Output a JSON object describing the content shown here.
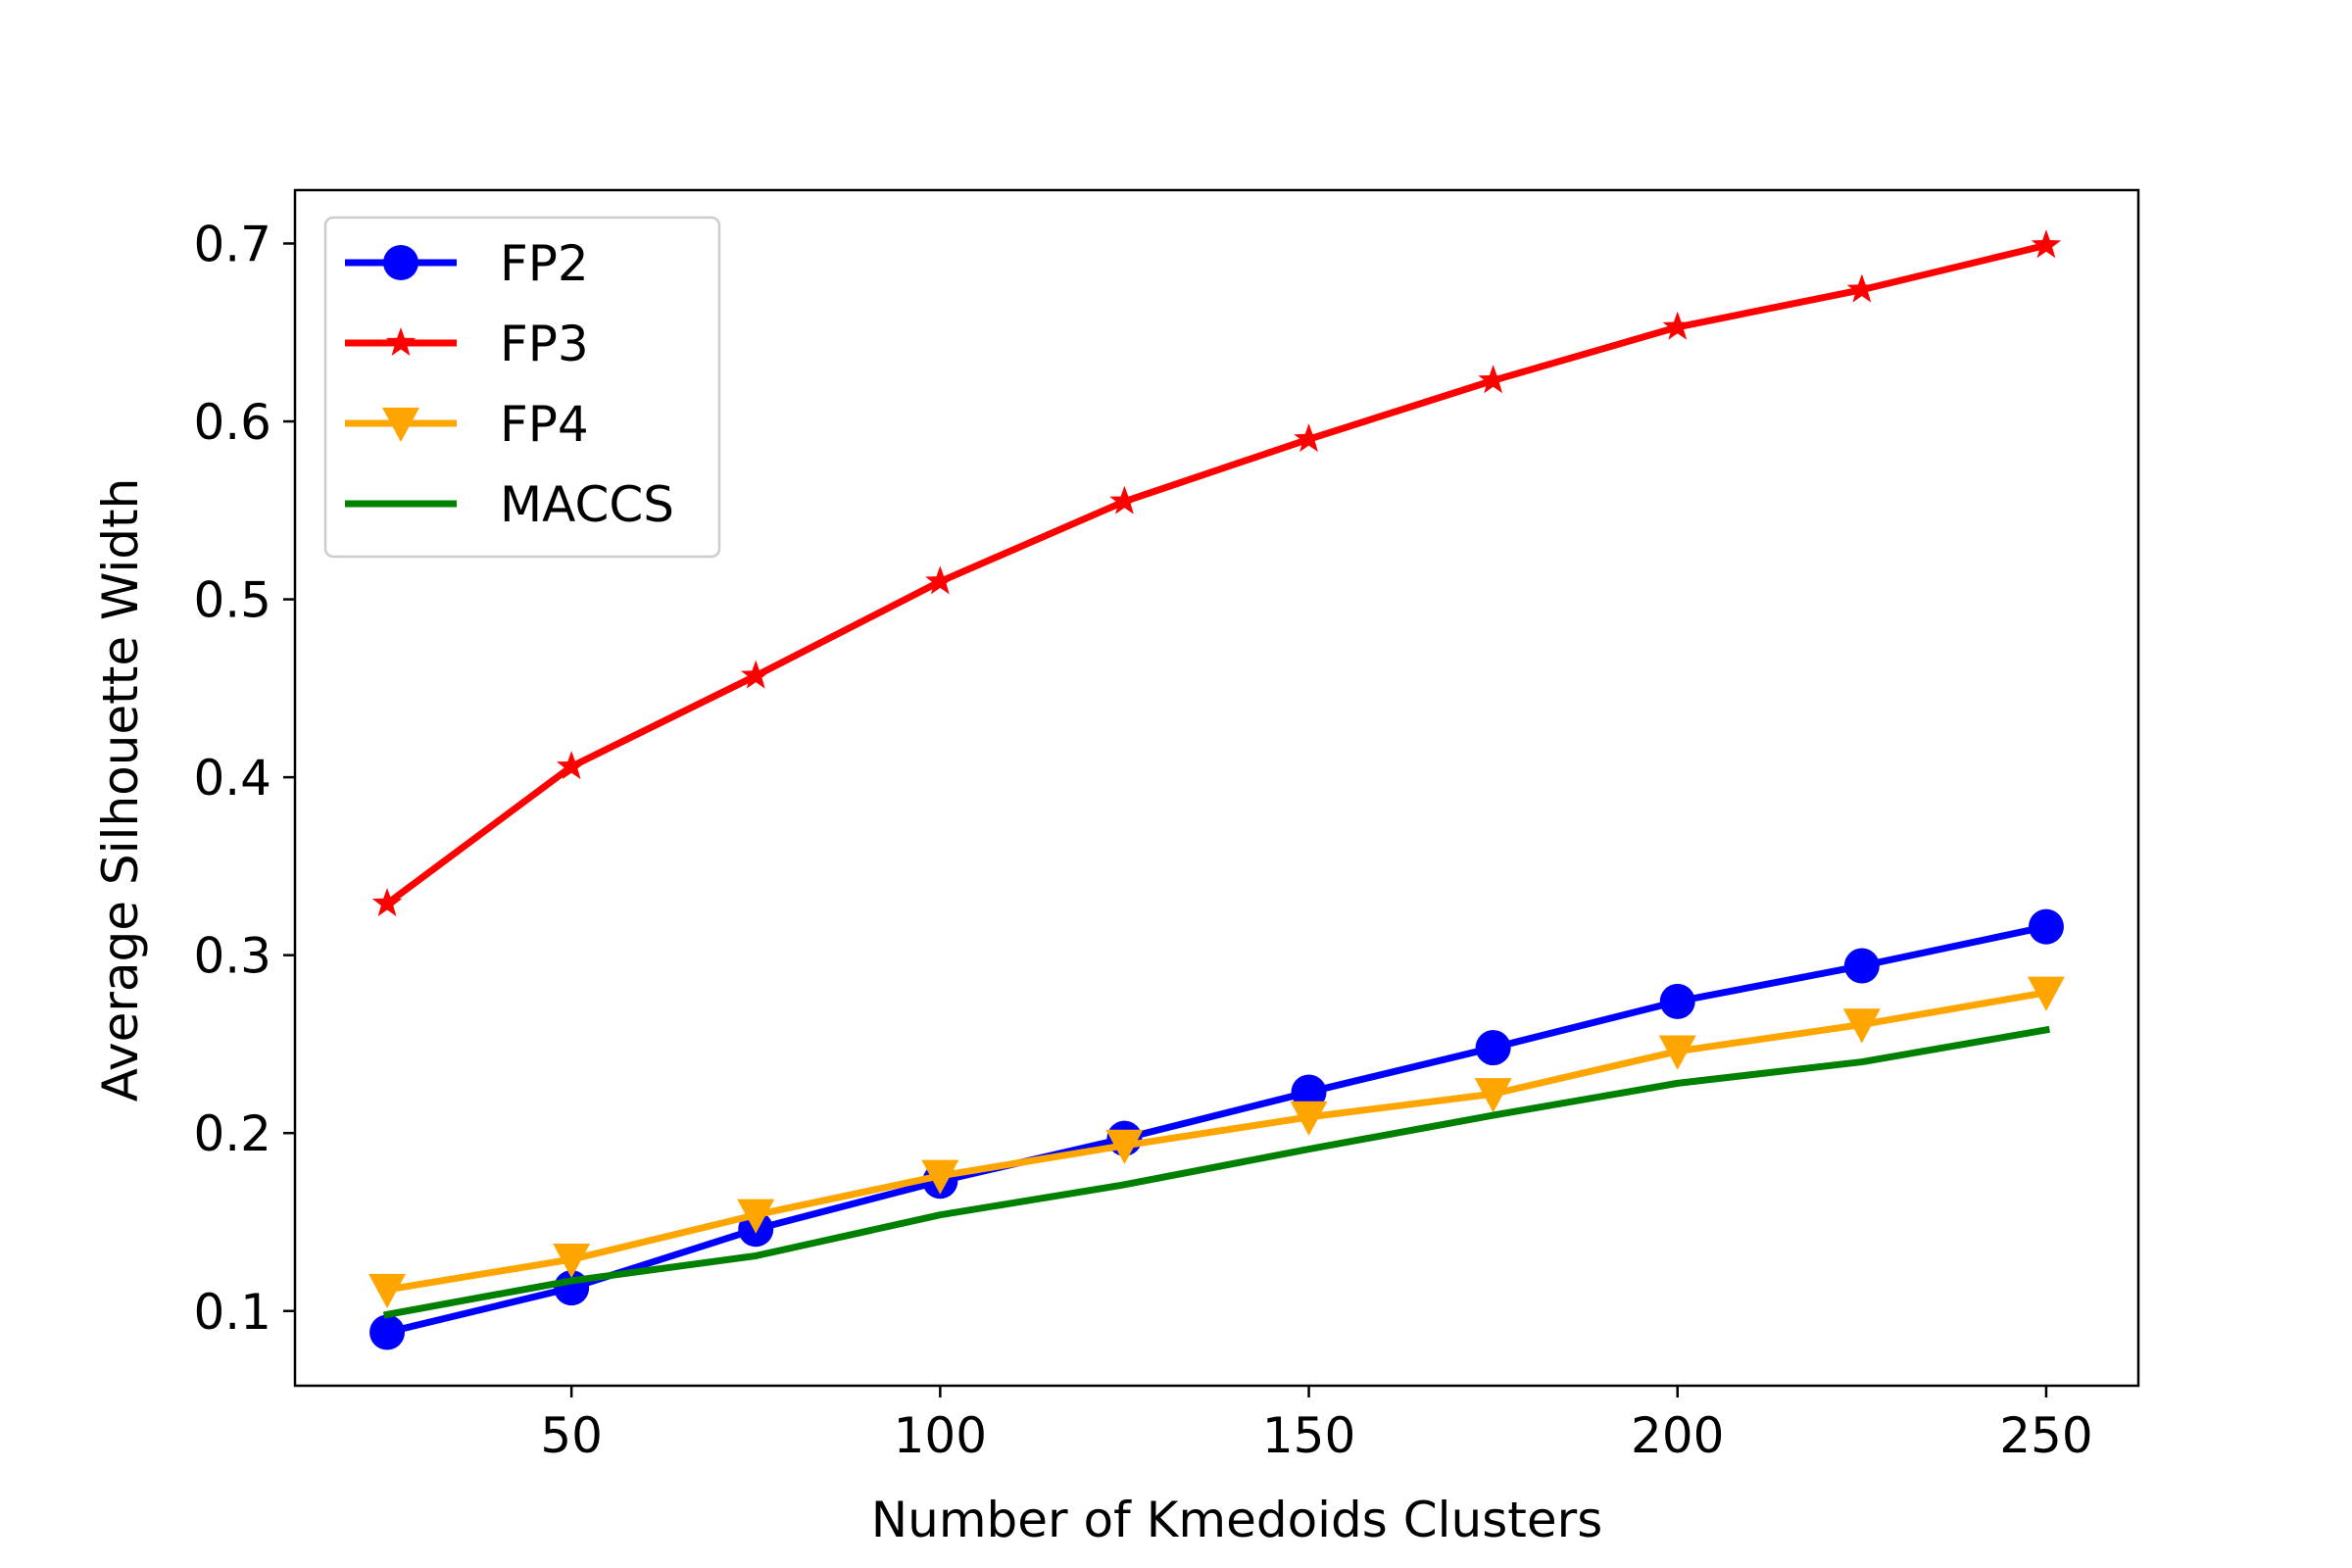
{
  "chart_data": {
    "type": "line",
    "title": "",
    "xlabel": "Number of Kmedoids Clusters",
    "ylabel": "Average Silhouette Width",
    "x": [
      25,
      50,
      75,
      100,
      125,
      150,
      175,
      200,
      225,
      250
    ],
    "xlim": [
      12.5,
      262.5
    ],
    "ylim": [
      0.058,
      0.73
    ],
    "xticks": [
      50,
      100,
      150,
      200,
      250
    ],
    "xtick_labels": [
      "50",
      "100",
      "150",
      "200",
      "250"
    ],
    "yticks": [
      0.1,
      0.2,
      0.3,
      0.4,
      0.5,
      0.6,
      0.7
    ],
    "ytick_labels": [
      "0.1",
      "0.2",
      "0.3",
      "0.4",
      "0.5",
      "0.6",
      "0.7"
    ],
    "grid": false,
    "legend_position": "top-left",
    "series": [
      {
        "name": "FP2",
        "color": "#0000ff",
        "marker": "circle",
        "values": [
          0.088,
          0.113,
          0.146,
          0.173,
          0.197,
          0.223,
          0.248,
          0.274,
          0.294,
          0.316
        ]
      },
      {
        "name": "FP3",
        "color": "#ff0000",
        "marker": "star",
        "values": [
          0.329,
          0.406,
          0.457,
          0.51,
          0.555,
          0.59,
          0.623,
          0.653,
          0.674,
          0.699
        ]
      },
      {
        "name": "FP4",
        "color": "#ffa500",
        "marker": "triangle-down",
        "values": [
          0.112,
          0.129,
          0.154,
          0.176,
          0.193,
          0.209,
          0.222,
          0.246,
          0.261,
          0.279
        ]
      },
      {
        "name": "MACCS",
        "color": "#008000",
        "marker": "none",
        "values": [
          0.098,
          0.117,
          0.131,
          0.154,
          0.171,
          0.191,
          0.21,
          0.228,
          0.24,
          0.258
        ]
      }
    ]
  }
}
